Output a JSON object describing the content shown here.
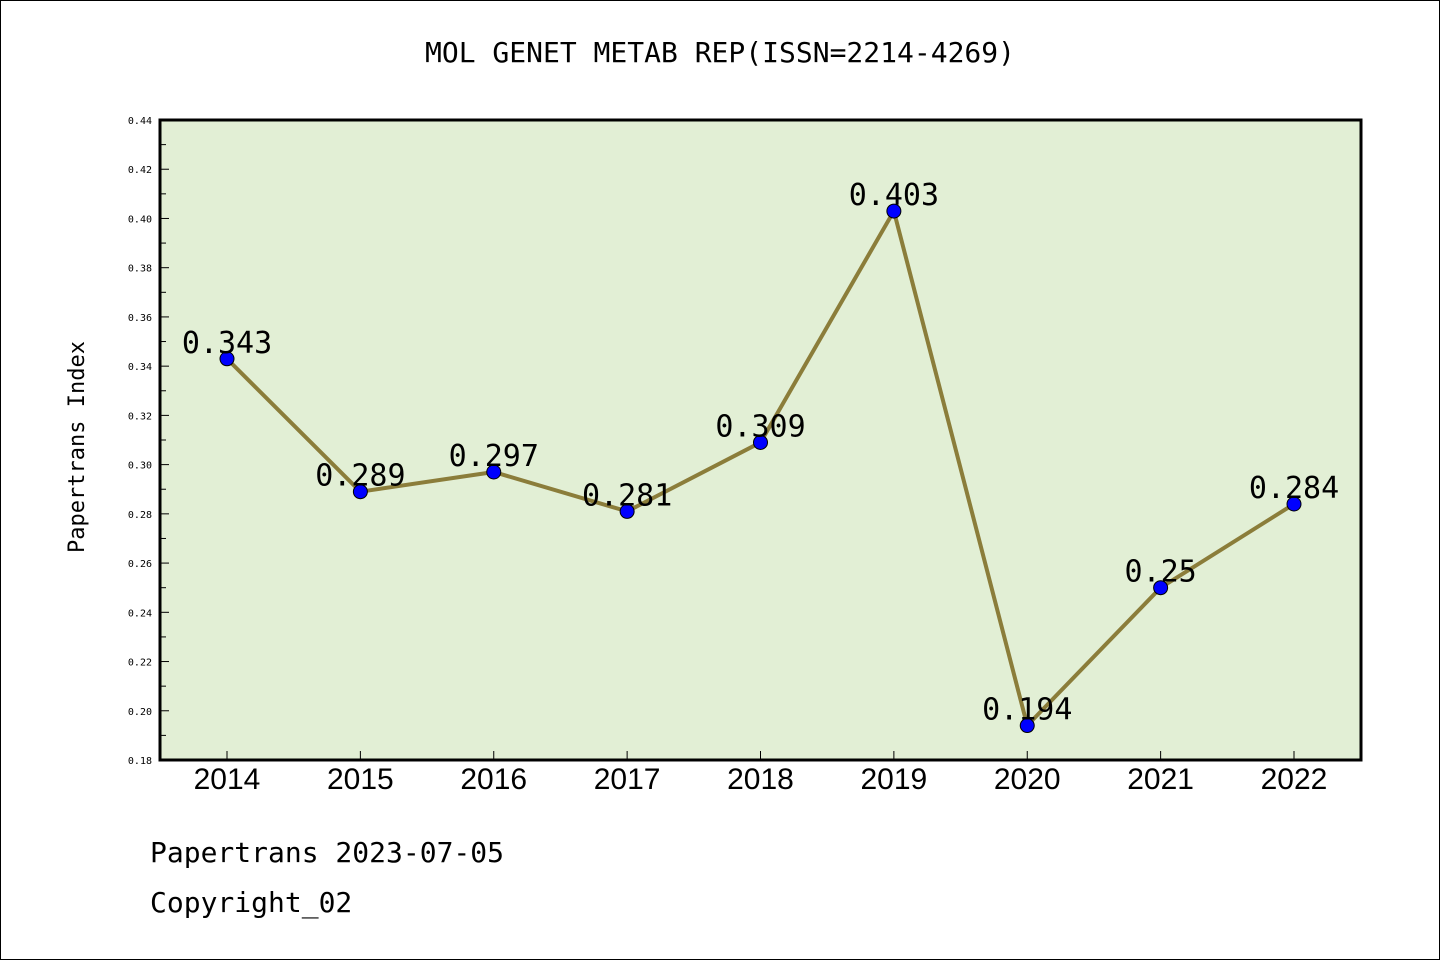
{
  "chart_data": {
    "type": "line",
    "title": "MOL GENET METAB REP(ISSN=2214-4269)",
    "xlabel": "",
    "ylabel": "Papertrans Index",
    "categories": [
      "2014",
      "2015",
      "2016",
      "2017",
      "2018",
      "2019",
      "2020",
      "2021",
      "2022"
    ],
    "series": [
      {
        "values": [
          0.343,
          0.289,
          0.297,
          0.281,
          0.309,
          0.403,
          0.194,
          0.25,
          0.284
        ],
        "labels": [
          "0.343",
          "0.289",
          "0.297",
          "0.281",
          "0.309",
          "0.403",
          "0.194",
          "0.25",
          "0.284"
        ],
        "line_color": "#8b7d3a",
        "marker_color": "#0000ff"
      }
    ],
    "ylim": [
      0.18,
      0.44
    ],
    "yticks": [
      "0.18",
      "0.20",
      "0.22",
      "0.24",
      "0.26",
      "0.28",
      "0.30",
      "0.32",
      "0.34",
      "0.36",
      "0.38",
      "0.40",
      "0.42",
      "0.44"
    ],
    "grid": false,
    "plot_background": "#e2efd5"
  },
  "footer": {
    "line1": "Papertrans 2023-07-05",
    "line2": "Copyright_02"
  }
}
